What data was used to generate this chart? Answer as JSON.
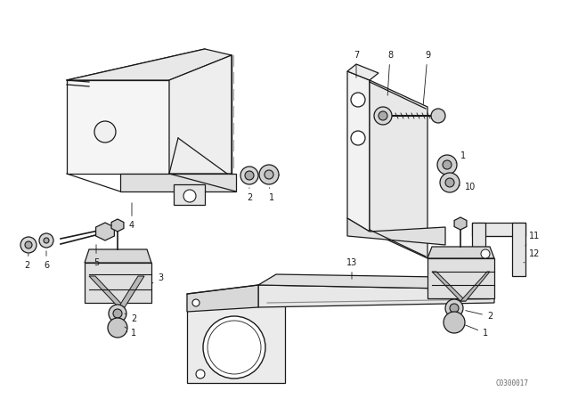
{
  "bg_color": "#ffffff",
  "line_color": "#1a1a1a",
  "fig_width": 6.4,
  "fig_height": 4.48,
  "dpi": 100,
  "watermark": "C0300017"
}
